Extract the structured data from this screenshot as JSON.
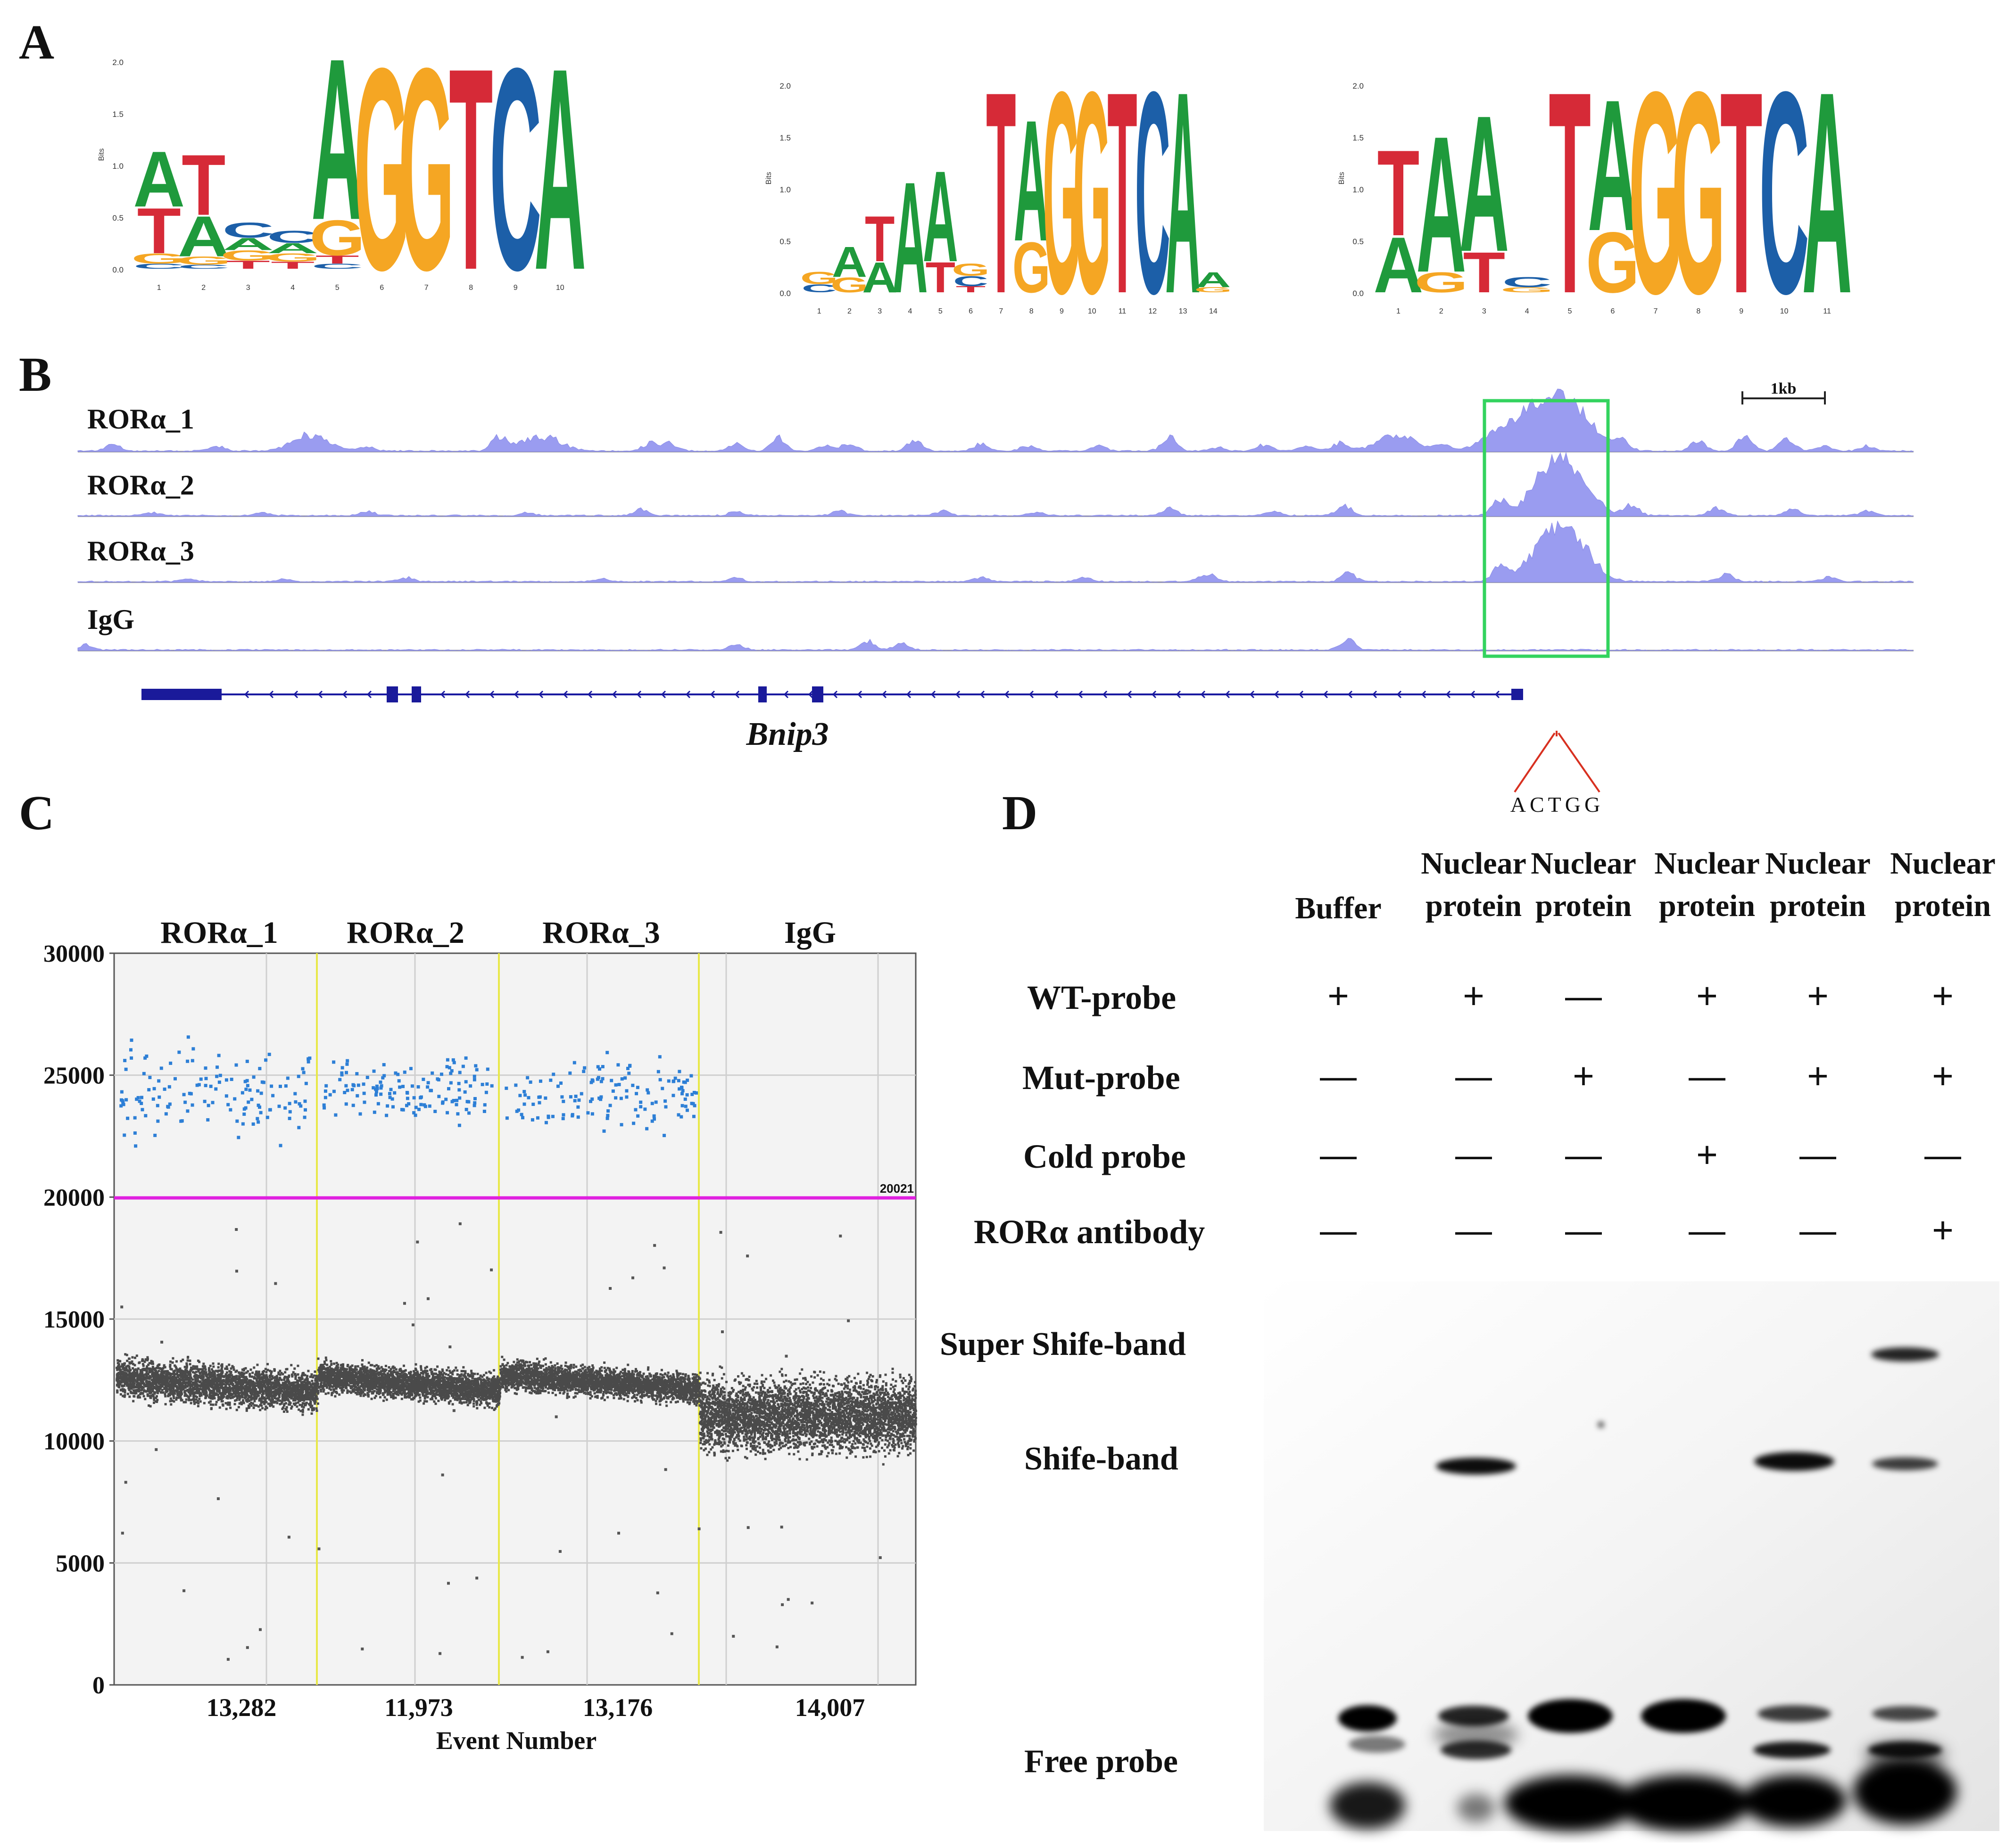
{
  "panels": {
    "a": "A",
    "b": "B",
    "c": "C",
    "d": "D"
  },
  "motifs": {
    "axis_label": "Bits",
    "logos": [
      {
        "ticks_y": [
          "2.0",
          "1.5",
          "1.0",
          "0.5",
          "0.0"
        ],
        "positions": [
          "1",
          "2",
          "3",
          "4",
          "5",
          "6",
          "7",
          "8",
          "9",
          "10"
        ],
        "columns": [
          [
            "A",
            "T",
            "G",
            "C"
          ],
          [
            "T",
            "A",
            "G",
            "C"
          ],
          [
            "C",
            "A",
            "G",
            "T"
          ],
          [
            "C",
            "A",
            "G",
            "T"
          ],
          [
            "A",
            "G",
            "T",
            "C"
          ],
          [
            "G"
          ],
          [
            "G"
          ],
          [
            "T"
          ],
          [
            "C"
          ],
          [
            "A"
          ]
        ]
      },
      {
        "ticks_y": [
          "2.0",
          "1.5",
          "1.0",
          "0.5",
          "0.0"
        ],
        "positions": [
          "1",
          "2",
          "3",
          "4",
          "5",
          "6",
          "7",
          "8",
          "9",
          "10",
          "11",
          "12",
          "13",
          "14"
        ],
        "columns": [
          [
            "G",
            "C"
          ],
          [
            "A",
            "G"
          ],
          [
            "T",
            "A"
          ],
          [
            "A"
          ],
          [
            "A",
            "T"
          ],
          [
            "C",
            "G",
            "T"
          ],
          [
            "T"
          ],
          [
            "A",
            "G"
          ],
          [
            "G"
          ],
          [
            "G"
          ],
          [
            "T"
          ],
          [
            "C"
          ],
          [
            "A"
          ],
          [
            "A",
            "G"
          ]
        ]
      },
      {
        "ticks_y": [
          "2.0",
          "1.5",
          "1.0",
          "0.5",
          "0.0"
        ],
        "positions": [
          "1",
          "2",
          "3",
          "4",
          "5",
          "6",
          "7",
          "8",
          "9",
          "10",
          "11"
        ],
        "columns": [
          [
            "T",
            "A"
          ],
          [
            "A",
            "G"
          ],
          [
            "A",
            "T"
          ],
          [
            "C",
            "G"
          ],
          [
            "T"
          ],
          [
            "A",
            "G"
          ],
          [
            "G"
          ],
          [
            "G"
          ],
          [
            "T"
          ],
          [
            "C"
          ],
          [
            "A"
          ]
        ]
      }
    ]
  },
  "tracks": {
    "scale_label": "1kb",
    "rows": [
      "RORα_1",
      "RORα_2",
      "RORα_3",
      "IgG"
    ],
    "gene": "Bnip3",
    "mutation": "ACTGG"
  },
  "chart_data": {
    "type": "scatter",
    "title": "",
    "xlabel": "Event Number",
    "ylabel": "",
    "ylim": [
      0,
      30000
    ],
    "yticks": [
      "30000",
      "25000",
      "20000",
      "15000",
      "10000",
      "5000",
      "0"
    ],
    "threshold": 20021,
    "threshold_label": "20021",
    "wells": [
      {
        "name": "RORα_1",
        "events": "13,282",
        "positive_range": [
          22000,
          26800
        ],
        "negative_range": [
          11500,
          13800
        ]
      },
      {
        "name": "RORα_2",
        "events": "11,973",
        "positive_range": [
          22800,
          26200
        ],
        "negative_range": [
          11800,
          13600
        ]
      },
      {
        "name": "RORα_3",
        "events": "13,176",
        "positive_range": [
          22500,
          26200
        ],
        "negative_range": [
          11900,
          13600
        ]
      },
      {
        "name": "IgG",
        "events": "14,007",
        "positive_range": [],
        "negative_range": [
          9000,
          13200
        ]
      }
    ],
    "colors": {
      "positive": "#2d7fd6",
      "negative": "#4a4a4a",
      "threshold": "#e020e0",
      "well_divider": "#e8e84a"
    }
  },
  "emsa": {
    "lanes": [
      {
        "head": [
          "Buffer"
        ],
        "wt": "+",
        "mut": "—",
        "cold": "—",
        "ab": "—"
      },
      {
        "head": [
          "Nuclear",
          "protein"
        ],
        "wt": "+",
        "mut": "—",
        "cold": "—",
        "ab": "—"
      },
      {
        "head": [
          "Nuclear",
          "protein"
        ],
        "wt": "—",
        "mut": "+",
        "cold": "—",
        "ab": "—"
      },
      {
        "head": [
          "Nuclear",
          "protein"
        ],
        "wt": "+",
        "mut": "—",
        "cold": "+",
        "ab": "—"
      },
      {
        "head": [
          "Nuclear",
          "protein"
        ],
        "wt": "+",
        "mut": "+",
        "cold": "—",
        "ab": "—"
      },
      {
        "head": [
          "Nuclear",
          "protein"
        ],
        "wt": "+",
        "mut": "+",
        "cold": "—",
        "ab": "+"
      }
    ],
    "row_labels": {
      "wt": "WT-probe",
      "mut": "Mut-probe",
      "cold": "Cold probe",
      "ab": "RORα antibody"
    },
    "band_labels": {
      "super": "Super Shife-band",
      "shift": "Shife-band",
      "free": "Free probe"
    }
  }
}
